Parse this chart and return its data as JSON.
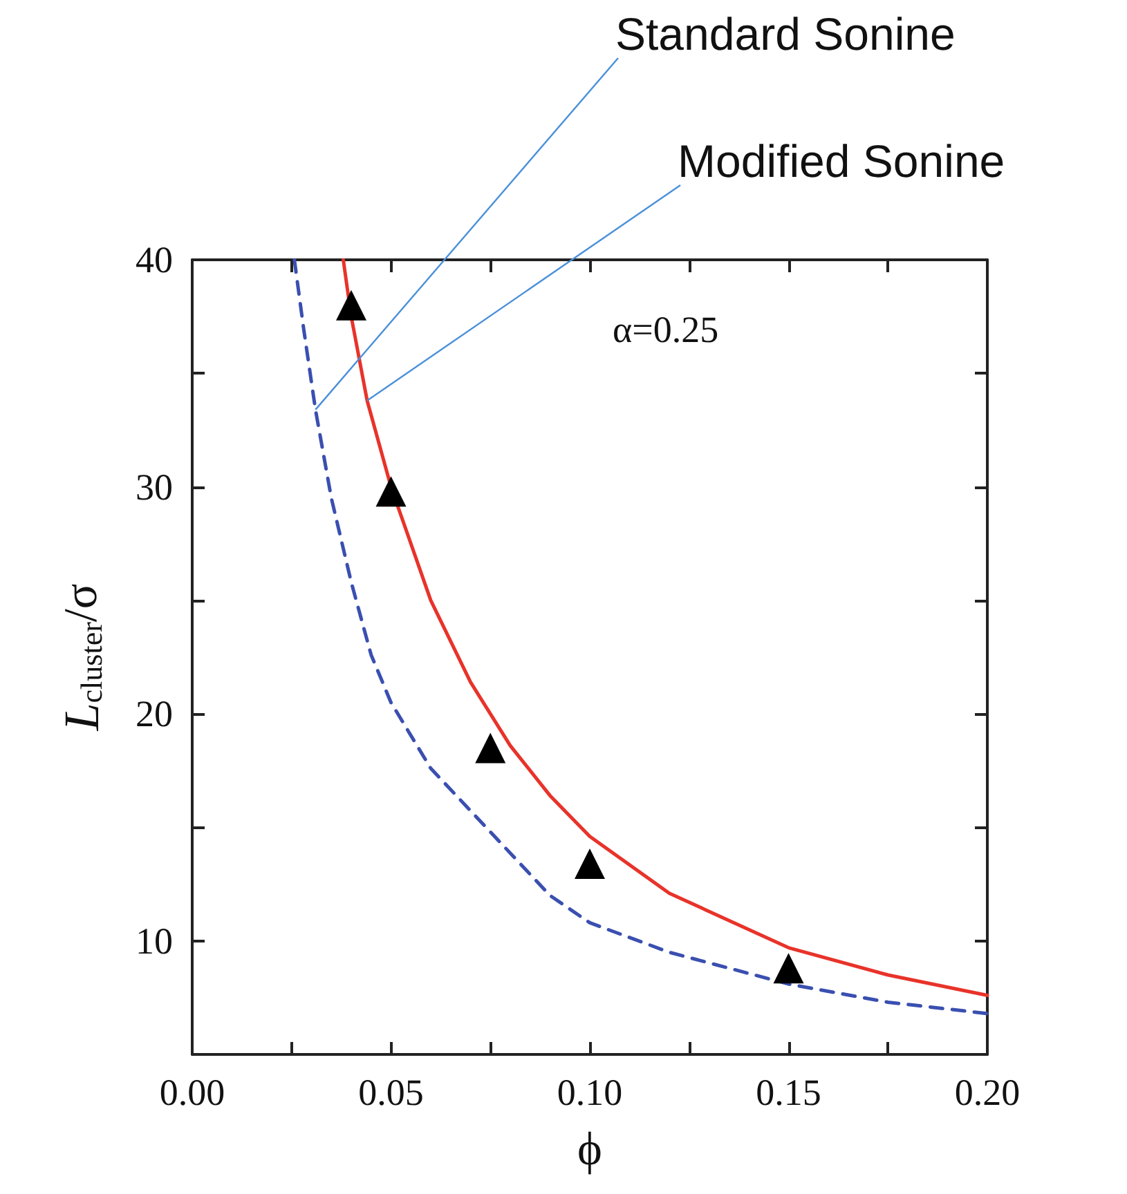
{
  "chart_data": {
    "type": "line",
    "xlabel": "ϕ",
    "ylabel": "L$_{cluster}$/σ",
    "xlim": [
      0,
      0.2
    ],
    "ylim": [
      5,
      40
    ],
    "xticks": [
      {
        "value": 0,
        "label": "0.00"
      },
      {
        "value": 0.025,
        "label": null
      },
      {
        "value": 0.05,
        "label": "0.05"
      },
      {
        "value": 0.075,
        "label": null
      },
      {
        "value": 0.1,
        "label": "0.10"
      },
      {
        "value": 0.125,
        "label": null
      },
      {
        "value": 0.15,
        "label": "0.15"
      },
      {
        "value": 0.175,
        "label": null
      },
      {
        "value": 0.2,
        "label": "0.20"
      }
    ],
    "yticks": [
      10,
      {
        "value": 15,
        "label": null
      },
      20,
      {
        "value": 25,
        "label": null
      },
      30,
      {
        "value": 35,
        "label": null
      },
      40
    ],
    "grid": false,
    "legend": false,
    "annotations": [
      "α=0.25"
    ],
    "series": [
      {
        "name": "Standard Sonine",
        "color": "#3a4fb0",
        "line_style": "dashed",
        "marker": "none",
        "x": [
          0.0257,
          0.028,
          0.031,
          0.035,
          0.04,
          0.045,
          0.05,
          0.06,
          0.075,
          0.09,
          0.1,
          0.12,
          0.15,
          0.175,
          0.2
        ],
        "values": [
          40,
          37,
          33.4,
          29.5,
          25.8,
          22.6,
          20.5,
          17.6,
          14.8,
          12,
          10.8,
          9.5,
          8.1,
          7.3,
          6.8
        ]
      },
      {
        "name": "Modified Sonine",
        "color": "#e8332a",
        "line_style": "solid",
        "marker": "none",
        "x": [
          0.038,
          0.04,
          0.044,
          0.05,
          0.06,
          0.07,
          0.075,
          0.08,
          0.09,
          0.1,
          0.12,
          0.15,
          0.175,
          0.2
        ],
        "values": [
          40,
          37.5,
          33.8,
          30,
          25,
          21.4,
          20,
          18.6,
          16.4,
          14.6,
          12.1,
          9.7,
          8.5,
          7.6
        ]
      },
      {
        "type": "scatter",
        "color": "#000000",
        "marker": "triangle",
        "x": [
          0.04,
          0.05,
          0.075,
          0.1,
          0.15
        ],
        "values": [
          38,
          29.8,
          18.5,
          13.4,
          8.8
        ]
      }
    ]
  }
}
